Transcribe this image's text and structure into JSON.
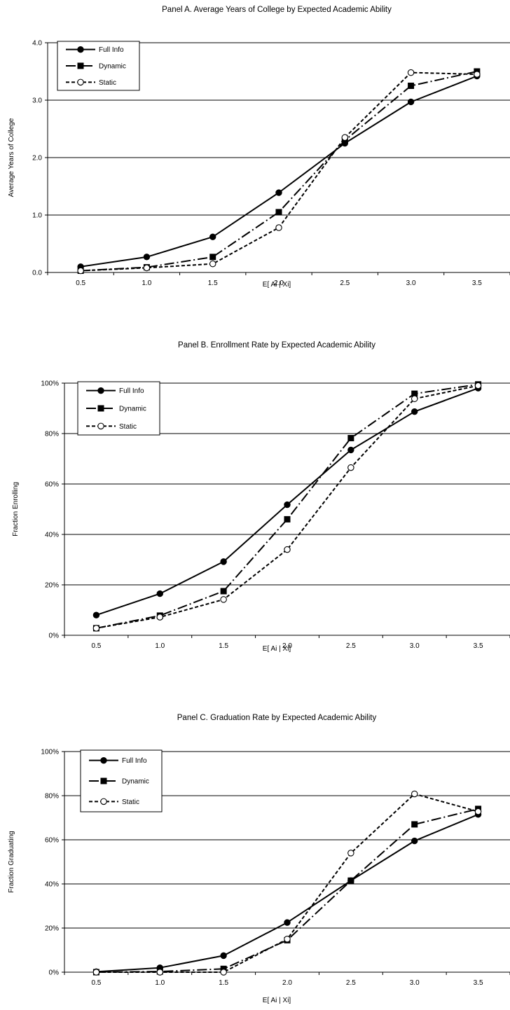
{
  "chart_data": [
    {
      "type": "line",
      "title": "Panel A. Average Years of College by Expected Academic Ability",
      "xlabel": "E[ Ai | Xi]",
      "ylabel": "Average Years of College",
      "categories": [
        "0.5",
        "1.0",
        "1.5",
        "2.0",
        "2.5",
        "3.0",
        "3.5"
      ],
      "ylim": [
        0,
        4
      ],
      "yticks": [
        "0.0",
        "1.0",
        "2.0",
        "3.0",
        "4.0"
      ],
      "grid": true,
      "legend_position": "top-left",
      "series": [
        {
          "name": "Full Info",
          "values": [
            0.1,
            0.27,
            0.62,
            1.39,
            2.25,
            2.97,
            3.42
          ]
        },
        {
          "name": "Dynamic",
          "values": [
            0.03,
            0.09,
            0.27,
            1.05,
            2.3,
            3.25,
            3.5
          ]
        },
        {
          "name": "Static",
          "values": [
            0.03,
            0.08,
            0.15,
            0.78,
            2.35,
            3.48,
            3.45
          ]
        }
      ]
    },
    {
      "type": "line",
      "title": "Panel B. Enrollment Rate by Expected Academic Ability",
      "xlabel": "E[ Ai | Xi]",
      "ylabel": "Fraction Enrolling",
      "categories": [
        "0.5",
        "1.0",
        "1.5",
        "2.0",
        "2.5",
        "3.0",
        "3.5"
      ],
      "ylim": [
        0,
        100
      ],
      "yticks": [
        "0%",
        "20%",
        "40%",
        "60%",
        "80%",
        "100%"
      ],
      "grid": true,
      "legend_position": "top-left",
      "series": [
        {
          "name": "Full Info",
          "values": [
            8.0,
            16.5,
            29.2,
            51.8,
            73.5,
            88.7,
            98.0
          ]
        },
        {
          "name": "Dynamic",
          "values": [
            2.8,
            7.8,
            17.5,
            46.0,
            78.2,
            95.8,
            99.5
          ]
        },
        {
          "name": "Static",
          "values": [
            2.8,
            7.2,
            14.2,
            34.0,
            66.5,
            93.8,
            99.0
          ]
        }
      ]
    },
    {
      "type": "line",
      "title": "Panel C. Graduation Rate by Expected Academic Ability",
      "xlabel": "E[ Ai | Xi]",
      "ylabel": "Fraction Graduating",
      "categories": [
        "0.5",
        "1.0",
        "1.5",
        "2.0",
        "2.5",
        "3.0",
        "3.5"
      ],
      "ylim": [
        0,
        100
      ],
      "yticks": [
        "0%",
        "20%",
        "40%",
        "60%",
        "80%",
        "100%"
      ],
      "grid": true,
      "legend_position": "top-left",
      "series": [
        {
          "name": "Full Info",
          "values": [
            0.2,
            2.0,
            7.5,
            22.5,
            41.5,
            59.5,
            71.5
          ]
        },
        {
          "name": "Dynamic",
          "values": [
            0.0,
            0.3,
            1.5,
            14.5,
            41.5,
            67.0,
            74.0
          ]
        },
        {
          "name": "Static",
          "values": [
            0.0,
            0.0,
            0.0,
            15.0,
            54.0,
            80.8,
            72.8
          ]
        }
      ]
    }
  ],
  "style": {
    "line_color": "#000000",
    "grid_color": "#000000",
    "background": "#ffffff"
  }
}
